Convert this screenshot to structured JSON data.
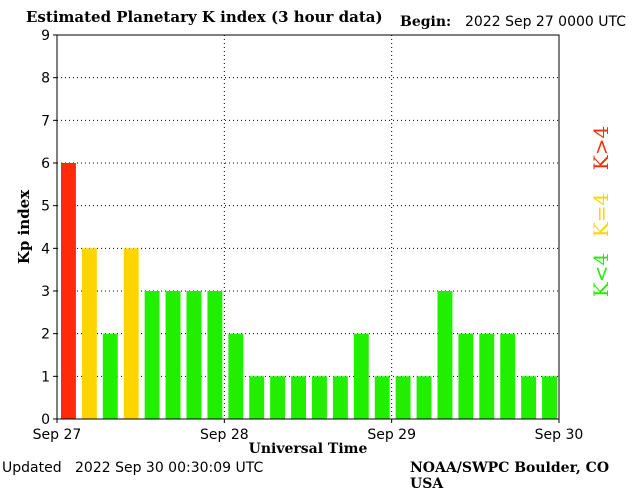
{
  "header": {
    "title": "Estimated Planetary K index (3 hour data)",
    "begin_label": "Begin:",
    "begin_value": "2022 Sep 27 0000 UTC"
  },
  "footer": {
    "updated_label": "Updated",
    "updated_value": "2022 Sep 30 00:30:09 UTC",
    "source": "NOAA/SWPC Boulder, CO USA"
  },
  "colors": {
    "low": "#22ee00",
    "mid": "#ffd400",
    "high": "#ff2a0a",
    "grid": "#000000"
  },
  "chart_data": {
    "type": "bar",
    "title": "Estimated Planetary K index (3 hour data)",
    "xlabel": "Universal Time",
    "ylabel": "Kp index",
    "ylim": [
      0,
      9
    ],
    "yticks": [
      "0",
      "1",
      "2",
      "3",
      "4",
      "5",
      "6",
      "7",
      "8",
      "9"
    ],
    "xticks": [
      "Sep 27",
      "Sep 28",
      "Sep 29",
      "Sep 30"
    ],
    "grid": "dotted",
    "legend": [
      {
        "label": "K<4",
        "color": "#22ee00"
      },
      {
        "label": "K=4",
        "color": "#ffd400"
      },
      {
        "label": "K>4",
        "color": "#ff2a0a"
      }
    ],
    "values": [
      6,
      4,
      2,
      4,
      3,
      3,
      3,
      3,
      2,
      1,
      1,
      1,
      1,
      1,
      2,
      1,
      1,
      1,
      3,
      2,
      2,
      2,
      1,
      1
    ]
  }
}
